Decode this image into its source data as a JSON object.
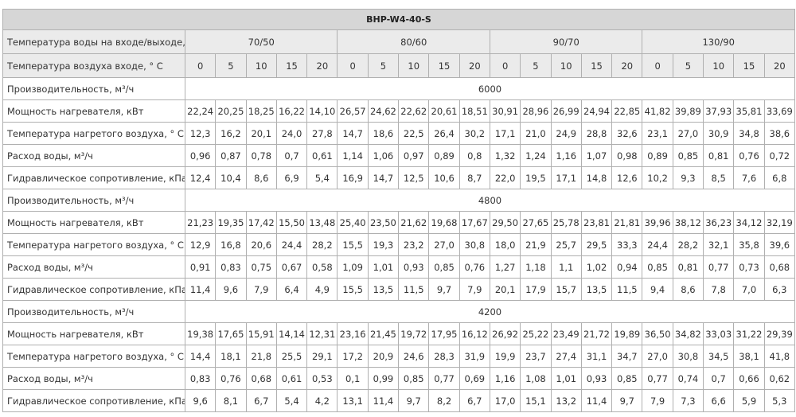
{
  "title": "BHP-W4-40-S",
  "water_temp_label": "Температура воды на входе/выходе, ° С",
  "water_temps": [
    "70/50",
    "80/60",
    "90/70",
    "130/90"
  ],
  "air_temp_label": "Температура воздуха входе, ° С",
  "air_temps": [
    "0",
    "5",
    "10",
    "15",
    "20",
    "0",
    "5",
    "10",
    "15",
    "20",
    "0",
    "5",
    "10",
    "15",
    "20",
    "0",
    "5",
    "10",
    "15",
    "20"
  ],
  "groups": [
    {
      "capacity_label": "Производительность, м³/ч",
      "capacity": "6000",
      "rows": [
        {
          "label": "Мощность нагревателя, кВт",
          "values": [
            "22,24",
            "20,25",
            "18,25",
            "16,22",
            "14,10",
            "26,57",
            "24,62",
            "22,62",
            "20,61",
            "18,51",
            "30,91",
            "28,96",
            "26,99",
            "24,94",
            "22,85",
            "41,82",
            "39,89",
            "37,93",
            "35,81",
            "33,69"
          ]
        },
        {
          "label": "Температура нагретого воздуха, ° С",
          "values": [
            "12,3",
            "16,2",
            "20,1",
            "24,0",
            "27,8",
            "14,7",
            "18,6",
            "22,5",
            "26,4",
            "30,2",
            "17,1",
            "21,0",
            "24,9",
            "28,8",
            "32,6",
            "23,1",
            "27,0",
            "30,9",
            "34,8",
            "38,6"
          ]
        },
        {
          "label": "Расход воды, м³/ч",
          "values": [
            "0,96",
            "0,87",
            "0,78",
            "0,7",
            "0,61",
            "1,14",
            "1,06",
            "0,97",
            "0,89",
            "0,8",
            "1,32",
            "1,24",
            "1,16",
            "1,07",
            "0,98",
            "0,89",
            "0,85",
            "0,81",
            "0,76",
            "0,72"
          ]
        },
        {
          "label": "Гидравлическое сопротивление, кПа",
          "values": [
            "12,4",
            "10,4",
            "8,6",
            "6,9",
            "5,4",
            "16,9",
            "14,7",
            "12,5",
            "10,6",
            "8,7",
            "22,0",
            "19,5",
            "17,1",
            "14,8",
            "12,6",
            "10,2",
            "9,3",
            "8,5",
            "7,6",
            "6,8"
          ]
        }
      ]
    },
    {
      "capacity_label": "Производительность, м³/ч",
      "capacity": "4800",
      "rows": [
        {
          "label": "Мощность нагревателя, кВт",
          "values": [
            "21,23",
            "19,35",
            "17,42",
            "15,50",
            "13,48",
            "25,40",
            "23,50",
            "21,62",
            "19,68",
            "17,67",
            "29,50",
            "27,65",
            "25,78",
            "23,81",
            "21,81",
            "39,96",
            "38,12",
            "36,23",
            "34,12",
            "32,19"
          ]
        },
        {
          "label": "Температура нагретого воздуха, ° С",
          "values": [
            "12,9",
            "16,8",
            "20,6",
            "24,4",
            "28,2",
            "15,5",
            "19,3",
            "23,2",
            "27,0",
            "30,8",
            "18,0",
            "21,9",
            "25,7",
            "29,5",
            "33,3",
            "24,4",
            "28,2",
            "32,1",
            "35,8",
            "39,6"
          ]
        },
        {
          "label": "Расход воды, м³/ч",
          "values": [
            "0,91",
            "0,83",
            "0,75",
            "0,67",
            "0,58",
            "1,09",
            "1,01",
            "0,93",
            "0,85",
            "0,76",
            "1,27",
            "1,18",
            "1,1",
            "1,02",
            "0,94",
            "0,85",
            "0,81",
            "0,77",
            "0,73",
            "0,68"
          ]
        },
        {
          "label": "Гидравлическое сопротивление, кПа",
          "values": [
            "11,4",
            "9,6",
            "7,9",
            "6,4",
            "4,9",
            "15,5",
            "13,5",
            "11,5",
            "9,7",
            "7,9",
            "20,1",
            "17,9",
            "15,7",
            "13,5",
            "11,5",
            "9,4",
            "8,6",
            "7,8",
            "7,0",
            "6,3"
          ]
        }
      ]
    },
    {
      "capacity_label": "Производительность, м³/ч",
      "capacity": "4200",
      "rows": [
        {
          "label": "Мощность нагревателя, кВт",
          "values": [
            "19,38",
            "17,65",
            "15,91",
            "14,14",
            "12,31",
            "23,16",
            "21,45",
            "19,72",
            "17,95",
            "16,12",
            "26,92",
            "25,22",
            "23,49",
            "21,72",
            "19,89",
            "36,50",
            "34,82",
            "33,03",
            "31,22",
            "29,39"
          ]
        },
        {
          "label": "Температура нагретого воздуха, ° С",
          "values": [
            "14,4",
            "18,1",
            "21,8",
            "25,5",
            "29,1",
            "17,2",
            "20,9",
            "24,6",
            "28,3",
            "31,9",
            "19,9",
            "23,7",
            "27,4",
            "31,1",
            "34,7",
            "27,0",
            "30,8",
            "34,5",
            "38,1",
            "41,8"
          ]
        },
        {
          "label": "Расход воды, м³/ч",
          "values": [
            "0,83",
            "0,76",
            "0,68",
            "0,61",
            "0,53",
            "0,1",
            "0,99",
            "0,85",
            "0,77",
            "0,69",
            "1,16",
            "1,08",
            "1,01",
            "0,93",
            "0,85",
            "0,77",
            "0,74",
            "0,7",
            "0,66",
            "0,62"
          ]
        },
        {
          "label": "Гидравлическое сопротивление, кПа",
          "values": [
            "9,6",
            "8,1",
            "6,7",
            "5,4",
            "4,2",
            "13,1",
            "11,4",
            "9,7",
            "8,2",
            "6,7",
            "17,0",
            "15,1",
            "13,2",
            "11,4",
            "9,7",
            "7,9",
            "7,3",
            "6,6",
            "5,9",
            "5,3"
          ]
        }
      ]
    }
  ]
}
